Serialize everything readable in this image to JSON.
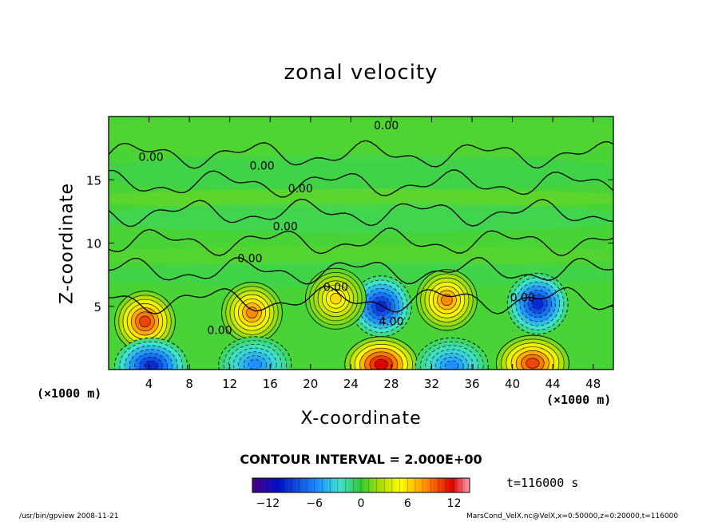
{
  "chart_data": {
    "type": "heatmap",
    "title": "zonal velocity",
    "xlabel": "X-coordinate",
    "ylabel": "Z-coordinate",
    "x_unit_label": "(×1000 m)",
    "x_ticks": [
      4,
      8,
      12,
      16,
      20,
      24,
      28,
      32,
      36,
      40,
      44,
      48
    ],
    "y_ticks": [
      5,
      10,
      15
    ],
    "xlim": [
      0,
      50
    ],
    "ylim": [
      0,
      20
    ],
    "contour_interval_text": "CONTOUR INTERVAL = 2.000E+00",
    "contour_labels": [
      {
        "text": "0.00",
        "x": 27.5,
        "z": 19.0
      },
      {
        "text": "0.00",
        "x": 4.2,
        "z": 16.5
      },
      {
        "text": "0.00",
        "x": 15.2,
        "z": 15.8
      },
      {
        "text": "0.00",
        "x": 19.0,
        "z": 14.0
      },
      {
        "text": "0.00",
        "x": 17.5,
        "z": 11.0
      },
      {
        "text": "0.00",
        "x": 14.0,
        "z": 8.5
      },
      {
        "text": "0.00",
        "x": 22.5,
        "z": 6.2
      },
      {
        "text": "0.00",
        "x": 41.0,
        "z": 5.4
      },
      {
        "text": "0.00",
        "x": 11.0,
        "z": 2.8
      },
      {
        "text": "4.00",
        "x": 28.0,
        "z": 3.5
      }
    ],
    "field_features": [
      {
        "sign": "positive",
        "x": 3.6,
        "z": 3.8,
        "peak": 10
      },
      {
        "sign": "positive",
        "x": 14.2,
        "z": 4.5,
        "peak": 8
      },
      {
        "sign": "negative",
        "x": 27.0,
        "z": 5.0,
        "peak": -10
      },
      {
        "sign": "negative",
        "x": 42.5,
        "z": 5.2,
        "peak": -10
      },
      {
        "sign": "positive",
        "x": 27.0,
        "z": 0.4,
        "peak": 12
      },
      {
        "sign": "positive",
        "x": 42.0,
        "z": 0.5,
        "peak": 10
      },
      {
        "sign": "negative",
        "x": 4.2,
        "z": 0.3,
        "peak": -10
      },
      {
        "sign": "negative",
        "x": 14.5,
        "z": 0.4,
        "peak": -6
      },
      {
        "sign": "negative",
        "x": 34.0,
        "z": 0.3,
        "peak": -6
      },
      {
        "sign": "positive",
        "x": 33.5,
        "z": 5.5,
        "peak": 8
      },
      {
        "sign": "positive",
        "x": 22.5,
        "z": 5.6,
        "peak": 6
      }
    ],
    "colorbar": {
      "min": -14,
      "max": 14,
      "ticks": [
        -12,
        -6,
        0,
        6,
        12
      ],
      "tick_labels": [
        "−12",
        "−6",
        "0",
        "6",
        "12"
      ]
    },
    "grid": false
  },
  "annotations": {
    "time": "t=116000 s",
    "footer_left": "/usr/bin/gpview   2008-11-21",
    "footer_right": "MarsCond_VelX.nc@VelX,x=0:50000,z=0:20000,t=116000"
  }
}
